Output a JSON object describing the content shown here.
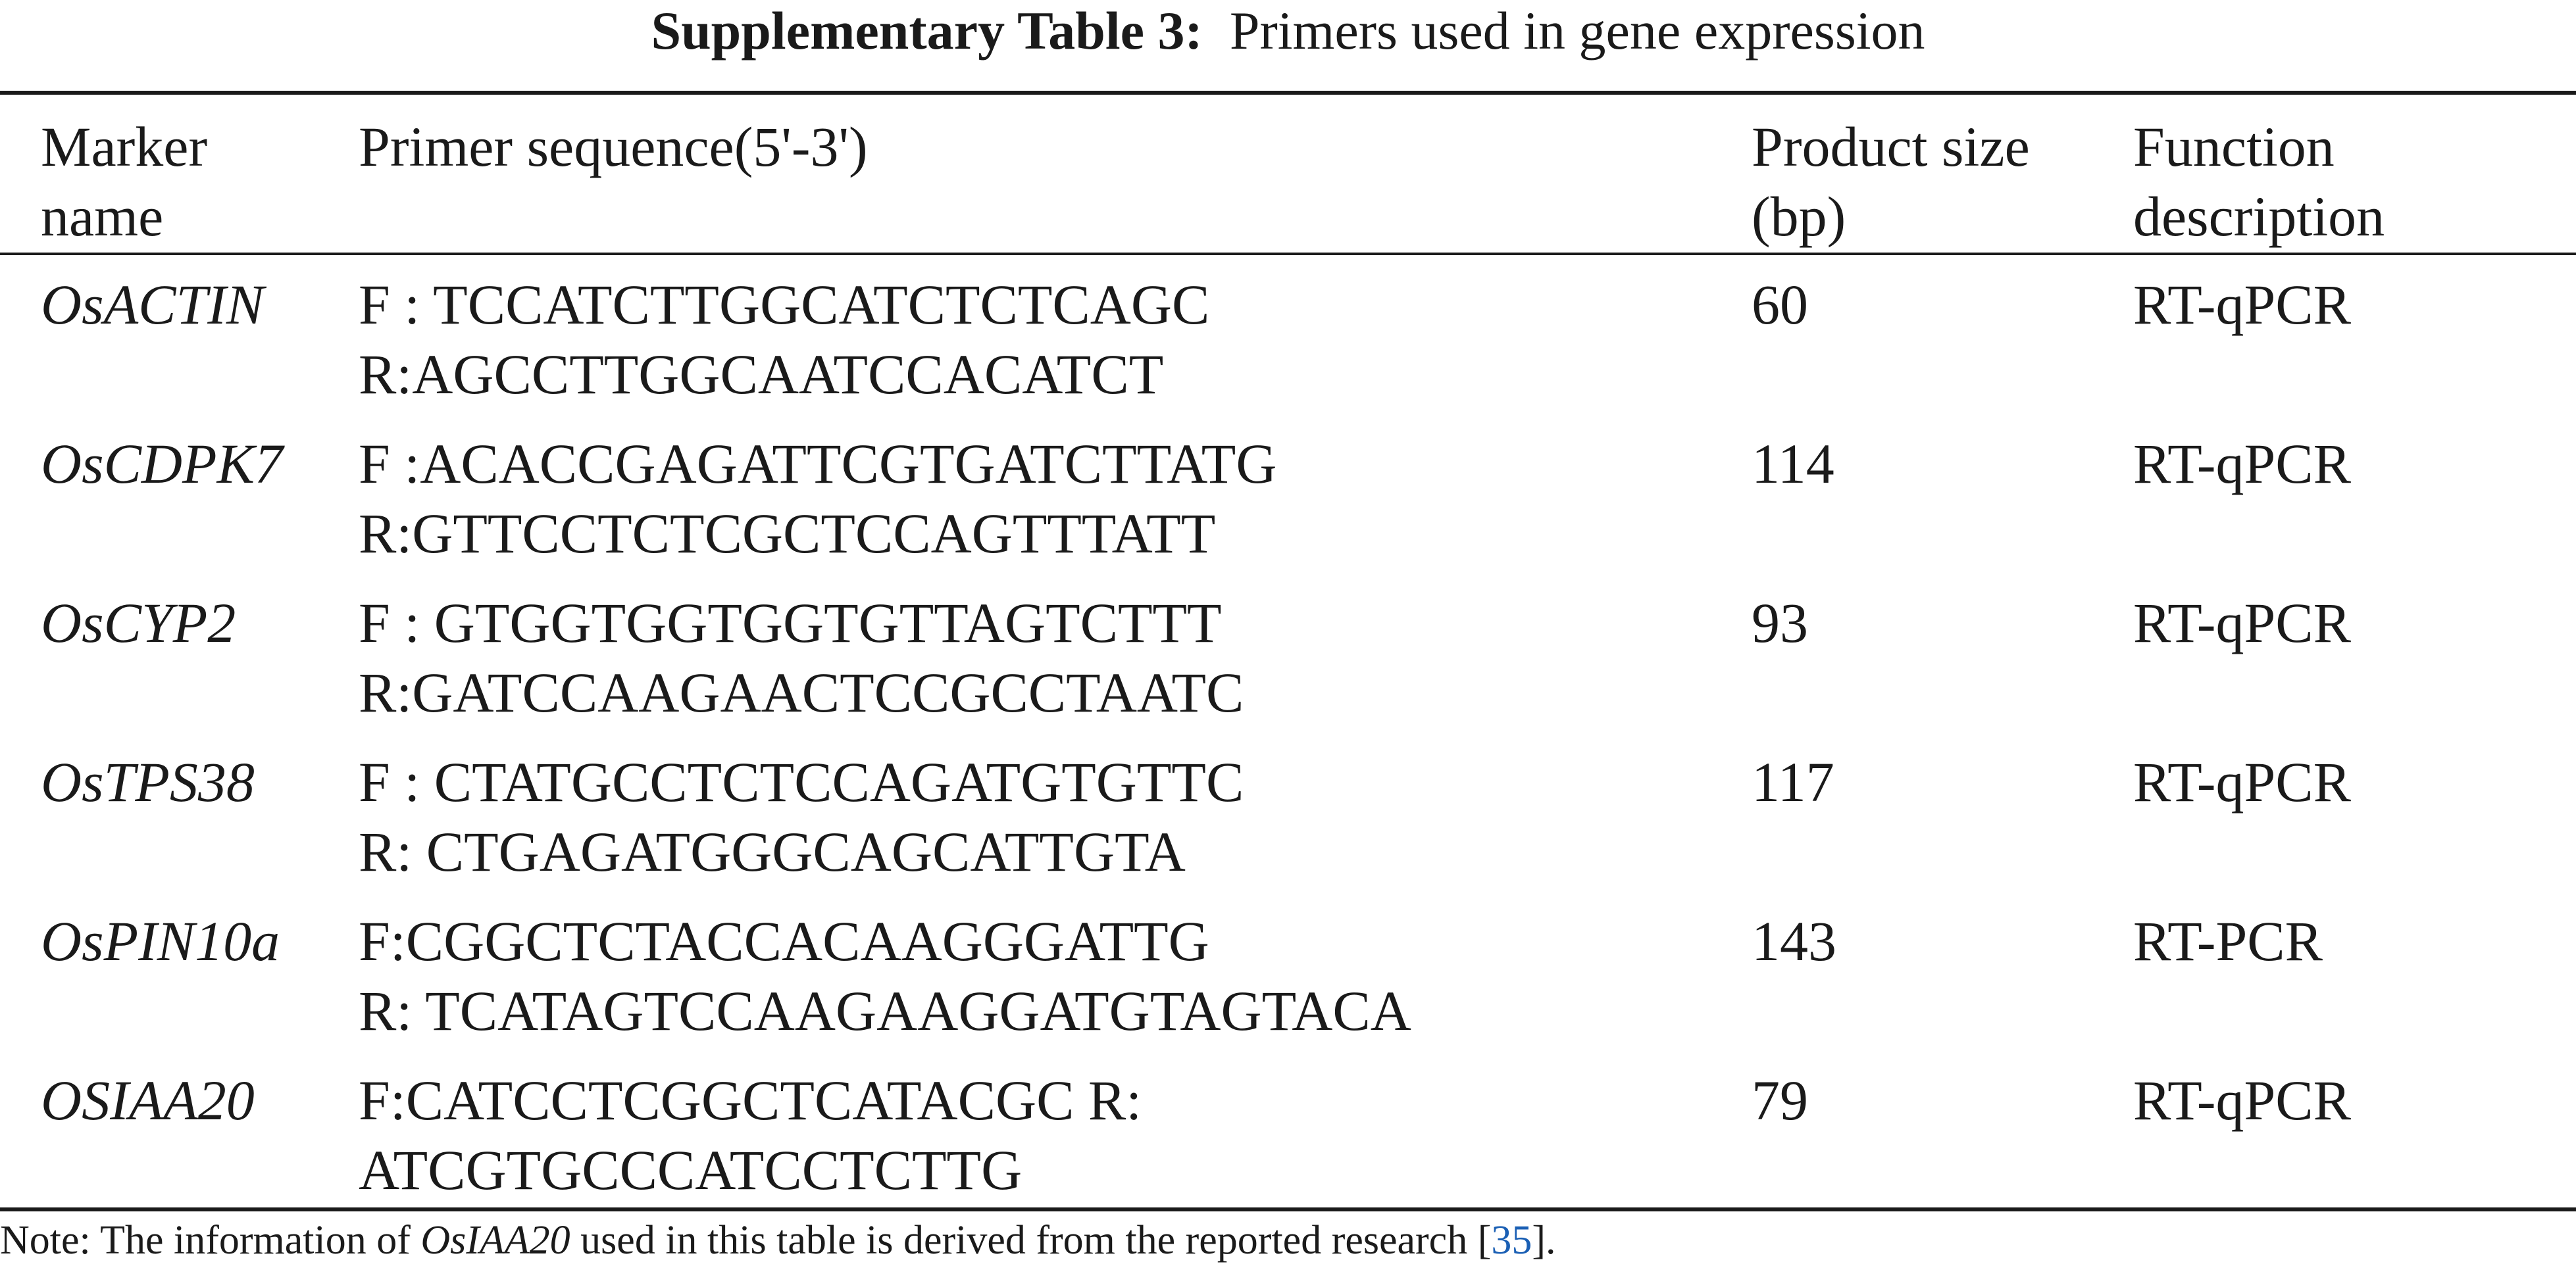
{
  "caption": {
    "label": "Supplementary Table 3:",
    "text": "Primers used in gene expression"
  },
  "columns": [
    "Marker\nname",
    "Primer sequence(5'-3')",
    "Product size\n(bp)",
    "Function\ndescription"
  ],
  "rows": [
    {
      "marker": "OsACTIN",
      "primer": "F : TCCATCTTGGCATCTCTCAGC\nR:AGCCTTGGCAATCCACATCT",
      "size": "60",
      "function": "RT-qPCR"
    },
    {
      "marker": "OsCDPK7",
      "primer": "F :ACACCGAGATTCGTGATCTTATG\nR:GTTCCTCTCGCTCCAGTTTATT",
      "size": "114",
      "function": "RT-qPCR"
    },
    {
      "marker": "OsCYP2",
      "primer": "F : GTGGTGGTGGTGTTAGTCTTT\nR:GATCCAAGAACTCCGCCTAATC",
      "size": "93",
      "function": "RT-qPCR"
    },
    {
      "marker": "OsTPS38",
      "primer": "F : CTATGCCTCTCCAGATGTGTTC\nR: CTGAGATGGGCAGCATTGTA",
      "size": "117",
      "function": "RT-qPCR"
    },
    {
      "marker": "OsPIN10a",
      "primer": "F:CGGCTCTACCACAAGGGATTG\nR: TCATAGTCCAAGAAGGATGTAGTACA",
      "size": "143",
      "function": "RT-PCR"
    },
    {
      "marker": "OSIAA20",
      "primer": "F:CATCCTCGGCTCATACGC R:\nATCGTGCCCATCCTCTTG",
      "size": "79",
      "function": "RT-qPCR"
    }
  ],
  "note": {
    "prefix": "Note: The information of ",
    "gene": "OsIAA20",
    "middle": " used in this table is derived from the reported research [",
    "ref": "35",
    "suffix": "]."
  },
  "colors": {
    "text": "#1a1a1a",
    "link": "#1a5fb4"
  }
}
